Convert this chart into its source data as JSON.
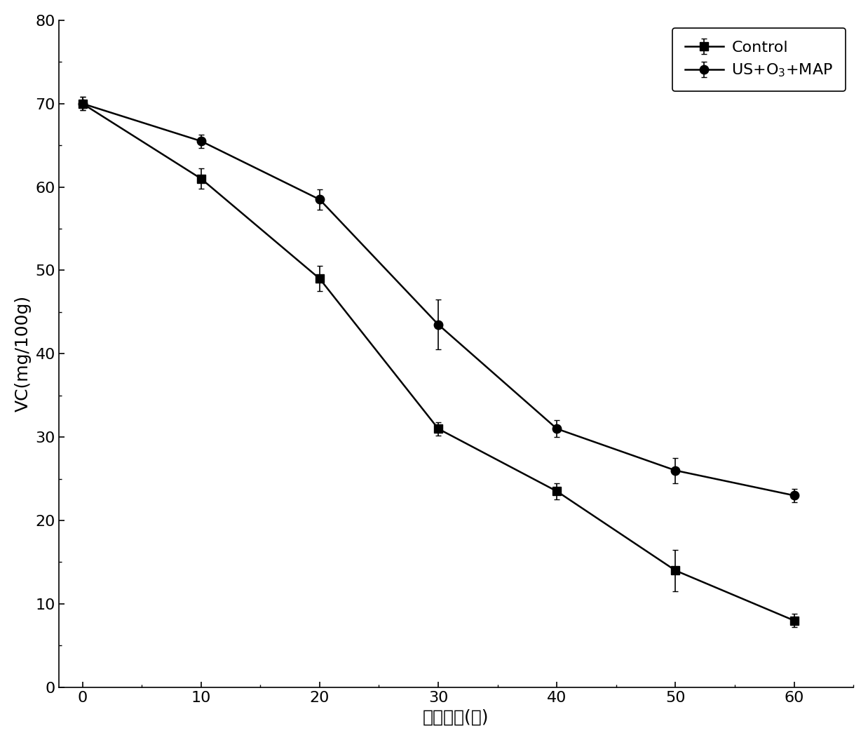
{
  "x": [
    0,
    10,
    20,
    30,
    40,
    50,
    60
  ],
  "control_y": [
    70.0,
    61.0,
    49.0,
    31.0,
    23.5,
    14.0,
    8.0
  ],
  "control_yerr": [
    0.8,
    1.2,
    1.5,
    0.8,
    1.0,
    2.5,
    0.8
  ],
  "treatment_y": [
    70.0,
    65.5,
    58.5,
    43.5,
    31.0,
    26.0,
    23.0
  ],
  "treatment_yerr": [
    0.8,
    0.8,
    1.2,
    3.0,
    1.0,
    1.5,
    0.8
  ],
  "xlabel": "贮藏时间(天)",
  "ylabel": "VC(mg/100g)",
  "xlim": [
    -2,
    65
  ],
  "ylim": [
    0,
    80
  ],
  "xticks": [
    0,
    10,
    20,
    30,
    40,
    50,
    60
  ],
  "yticks": [
    0,
    10,
    20,
    30,
    40,
    50,
    60,
    70,
    80
  ],
  "legend_control": "Control",
  "legend_treatment": "US+O$_3$+MAP",
  "line_color": "#000000",
  "marker_control": "-s",
  "marker_treatment": "-o",
  "marker_size": 9,
  "linewidth": 1.8,
  "capsize": 3,
  "elinewidth": 1.2,
  "label_fontsize": 18,
  "tick_fontsize": 16,
  "legend_fontsize": 16,
  "figure_width": 12.38,
  "figure_height": 10.55
}
